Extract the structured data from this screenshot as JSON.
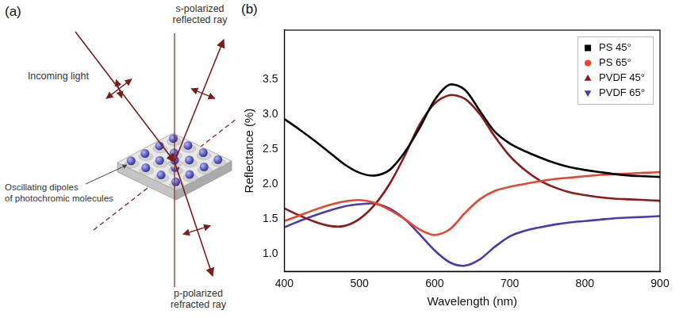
{
  "diagram": {
    "panel_label": "(a)",
    "labels": {
      "incoming": "Incoming light",
      "reflected": [
        "s-polarized",
        "reflected ray"
      ],
      "refracted": [
        "p-polarized",
        "refracted ray"
      ],
      "dipoles": [
        "Oscillating dipoles",
        "of photochromic molecules"
      ]
    }
  },
  "chart_data": {
    "panel_label": "(b)",
    "type": "line",
    "x_label": "Wavelength (nm)",
    "y_label": "Reflectance (%)",
    "x": [
      400,
      420,
      440,
      460,
      480,
      500,
      520,
      540,
      560,
      580,
      600,
      620,
      640,
      660,
      680,
      700,
      720,
      740,
      760,
      780,
      800,
      820,
      840,
      860,
      880,
      900
    ],
    "series": [
      {
        "name": "PS 45°",
        "color": "#000000",
        "marker": "square",
        "line_style": "solid",
        "values": [
          2.93,
          2.78,
          2.62,
          2.45,
          2.28,
          2.16,
          2.12,
          2.2,
          2.45,
          2.8,
          3.2,
          3.42,
          3.35,
          3.05,
          2.75,
          2.58,
          2.47,
          2.38,
          2.3,
          2.24,
          2.2,
          2.17,
          2.14,
          2.12,
          2.11,
          2.1
        ]
      },
      {
        "name": "PS 65°",
        "color": "#e8452c",
        "marker": "circle",
        "line_style": "solid",
        "values": [
          1.47,
          1.55,
          1.63,
          1.7,
          1.75,
          1.77,
          1.73,
          1.63,
          1.5,
          1.35,
          1.27,
          1.35,
          1.58,
          1.78,
          1.9,
          1.96,
          2.0,
          2.04,
          2.07,
          2.09,
          2.11,
          2.13,
          2.14,
          2.15,
          2.16,
          2.17
        ]
      },
      {
        "name": "PVDF 45°",
        "color": "#8b1a1a",
        "marker": "triangle",
        "line_style": "solid",
        "values": [
          1.65,
          1.55,
          1.46,
          1.4,
          1.4,
          1.5,
          1.7,
          2.0,
          2.4,
          2.85,
          3.15,
          3.27,
          3.22,
          3.0,
          2.68,
          2.4,
          2.2,
          2.05,
          1.95,
          1.88,
          1.84,
          1.81,
          1.79,
          1.78,
          1.77,
          1.76
        ]
      },
      {
        "name": "PVDF 65°",
        "color": "#4a3ab0",
        "marker": "triangle_down",
        "line_style": "solid",
        "values": [
          1.38,
          1.47,
          1.55,
          1.62,
          1.68,
          1.71,
          1.72,
          1.65,
          1.5,
          1.28,
          1.05,
          0.88,
          0.83,
          0.92,
          1.1,
          1.25,
          1.33,
          1.38,
          1.42,
          1.45,
          1.47,
          1.49,
          1.51,
          1.52,
          1.53,
          1.54
        ]
      }
    ],
    "xlim": [
      400,
      900
    ],
    "xticks": [
      400,
      500,
      600,
      700,
      800,
      900
    ],
    "ylim": [
      0.75,
      4.2
    ],
    "yticks": [
      {
        "value": 1,
        "label": "1.0"
      },
      1.5,
      {
        "value": 2,
        "label": "2.0"
      },
      2.5,
      {
        "value": 3,
        "label": "3.0"
      },
      3.5
    ],
    "grid": false,
    "legend": "upper right"
  }
}
